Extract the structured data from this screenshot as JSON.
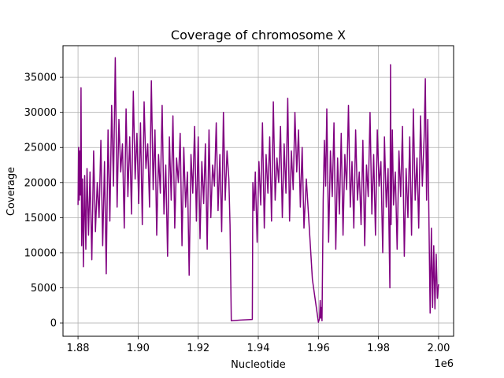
{
  "chart_data": {
    "type": "line",
    "title": "Coverage of chromosome X",
    "xlabel": "Nucleotide",
    "ylabel": "Coverage",
    "x_offset_label": "1e6",
    "xlim": [
      1.875,
      2.005
    ],
    "ylim": [
      -1900,
      39500
    ],
    "x_ticks": [
      1.88,
      1.9,
      1.92,
      1.94,
      1.96,
      1.98,
      2.0
    ],
    "x_tick_labels": [
      "1.88",
      "1.90",
      "1.92",
      "1.94",
      "1.96",
      "1.98",
      "2.00"
    ],
    "y_ticks": [
      0,
      5000,
      10000,
      15000,
      20000,
      25000,
      30000,
      35000
    ],
    "y_tick_labels": [
      "0",
      "5000",
      "10000",
      "15000",
      "20000",
      "25000",
      "30000",
      "35000"
    ],
    "grid": true,
    "line_color": "#800080",
    "series": [
      {
        "x": [
          1.88,
          1.8802,
          1.8804,
          1.8806,
          1.8808,
          1.881,
          1.8812,
          1.8815,
          1.8818,
          1.8822,
          1.8826,
          1.883,
          1.8835,
          1.884,
          1.8846,
          1.8852,
          1.8858,
          1.8864,
          1.887,
          1.8876,
          1.8882,
          1.8888,
          1.8894,
          1.89,
          1.8906,
          1.8912,
          1.8918,
          1.8924,
          1.893,
          1.8936,
          1.8942,
          1.8948,
          1.8954,
          1.896,
          1.8966,
          1.8972,
          1.8978,
          1.8984,
          1.899,
          1.8996,
          1.9002,
          1.9008,
          1.9014,
          1.902,
          1.9026,
          1.9032,
          1.9038,
          1.9044,
          1.905,
          1.9056,
          1.9062,
          1.9068,
          1.9074,
          1.908,
          1.9086,
          1.9092,
          1.9098,
          1.9104,
          1.911,
          1.9116,
          1.9122,
          1.9128,
          1.9134,
          1.914,
          1.9146,
          1.9152,
          1.9158,
          1.9164,
          1.917,
          1.9176,
          1.9182,
          1.9188,
          1.9194,
          1.92,
          1.9206,
          1.9212,
          1.9218,
          1.9224,
          1.923,
          1.9236,
          1.9242,
          1.9248,
          1.9254,
          1.926,
          1.9266,
          1.9272,
          1.9278,
          1.9284,
          1.929,
          1.9296,
          1.9302,
          1.9306,
          1.931,
          1.9338,
          1.938,
          1.9382,
          1.9386,
          1.939,
          1.9396,
          1.9402,
          1.9408,
          1.9414,
          1.942,
          1.9426,
          1.9432,
          1.9438,
          1.9444,
          1.945,
          1.9456,
          1.9462,
          1.9468,
          1.9474,
          1.948,
          1.9486,
          1.9492,
          1.9498,
          1.9504,
          1.951,
          1.9516,
          1.9522,
          1.9528,
          1.9534,
          1.954,
          1.9546,
          1.9552,
          1.956,
          1.958,
          1.96,
          1.9604,
          1.9606,
          1.9608,
          1.961,
          1.9612,
          1.9616,
          1.962,
          1.9624,
          1.9628,
          1.9634,
          1.964,
          1.9646,
          1.9652,
          1.9658,
          1.9664,
          1.967,
          1.9676,
          1.9682,
          1.9688,
          1.9694,
          1.97,
          1.9706,
          1.9712,
          1.9718,
          1.9724,
          1.973,
          1.9736,
          1.9742,
          1.9748,
          1.9754,
          1.976,
          1.9766,
          1.9772,
          1.9778,
          1.9784,
          1.979,
          1.9796,
          1.9802,
          1.9808,
          1.9814,
          1.982,
          1.9826,
          1.9832,
          1.9838,
          1.984,
          1.9842,
          1.9846,
          1.985,
          1.9856,
          1.9862,
          1.9868,
          1.9874,
          1.988,
          1.9886,
          1.9892,
          1.9898,
          1.9904,
          1.991,
          1.9916,
          1.9922,
          1.9928,
          1.9934,
          1.994,
          1.9946,
          1.9952,
          1.9956,
          1.996,
          1.9964,
          1.9968,
          1.9972,
          1.9976,
          1.998,
          1.9984,
          1.9988,
          1.9992,
          1.9996,
          2.0
        ],
        "y": [
          16800,
          25000,
          17500,
          24500,
          18200,
          33500,
          11000,
          20500,
          8000,
          21000,
          10500,
          22000,
          12500,
          21500,
          9000,
          24500,
          13000,
          20000,
          15000,
          26000,
          11000,
          23000,
          7000,
          27500,
          14500,
          31000,
          19500,
          37800,
          16500,
          29000,
          21500,
          25500,
          13500,
          30500,
          18000,
          26500,
          15500,
          33000,
          20500,
          27000,
          17000,
          28500,
          14000,
          31500,
          22000,
          25500,
          16500,
          34500,
          19000,
          27500,
          12500,
          24000,
          18500,
          31000,
          15500,
          22500,
          9500,
          26500,
          17500,
          29500,
          13500,
          23500,
          20000,
          27000,
          11000,
          25000,
          16500,
          21500,
          6800,
          24000,
          18500,
          28000,
          14500,
          26500,
          12000,
          23000,
          17000,
          25500,
          10500,
          27500,
          15000,
          22500,
          19500,
          28500,
          16000,
          24000,
          13000,
          30000,
          17500,
          24500,
          20500,
          14000,
          300,
          400,
          500,
          20000,
          16000,
          21500,
          11500,
          23000,
          16800,
          28500,
          13500,
          24000,
          18500,
          26500,
          14500,
          31500,
          17500,
          23500,
          20000,
          28000,
          15000,
          25500,
          18500,
          32000,
          14500,
          24500,
          19000,
          30000,
          21500,
          27500,
          16500,
          25000,
          13500,
          20500,
          6200,
          100,
          600,
          3200,
          700,
          2200,
          300,
          17500,
          26000,
          19500,
          30500,
          11500,
          24500,
          18000,
          28500,
          10500,
          23500,
          15500,
          27000,
          12500,
          24000,
          19000,
          31000,
          16500,
          23000,
          13500,
          27500,
          17500,
          21500,
          14000,
          26000,
          11000,
          22500,
          18000,
          30000,
          15500,
          24000,
          12500,
          27500,
          19500,
          23000,
          10000,
          26500,
          16500,
          22000,
          5000,
          36800,
          14000,
          27500,
          16800,
          21500,
          10500,
          24500,
          18000,
          28000,
          9500,
          22000,
          15000,
          26500,
          12500,
          30500,
          17500,
          23500,
          13500,
          29500,
          19500,
          26500,
          34800,
          17500,
          29000,
          14500,
          1400,
          13500,
          2200,
          11000,
          2000,
          9800,
          3500,
          5500
        ]
      }
    ]
  }
}
